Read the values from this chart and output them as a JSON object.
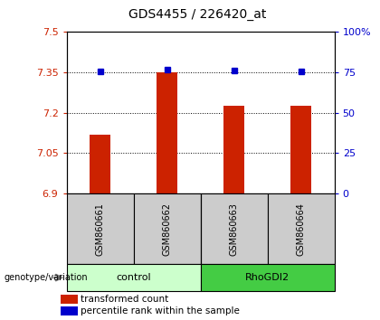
{
  "title": "GDS4455 / 226420_at",
  "samples": [
    "GSM860661",
    "GSM860662",
    "GSM860663",
    "GSM860664"
  ],
  "bar_values": [
    7.12,
    7.35,
    7.225,
    7.225
  ],
  "percentile_values": [
    7.352,
    7.36,
    7.356,
    7.354
  ],
  "ylim_left": [
    6.9,
    7.5
  ],
  "ylim_right": [
    0,
    100
  ],
  "yticks_left": [
    6.9,
    7.05,
    7.2,
    7.35,
    7.5
  ],
  "ytick_labels_left": [
    "6.9",
    "7.05",
    "7.2",
    "7.35",
    "7.5"
  ],
  "yticks_right": [
    0,
    25,
    50,
    75,
    100
  ],
  "ytick_labels_right": [
    "0",
    "25",
    "50",
    "75",
    "100%"
  ],
  "bar_color": "#cc2200",
  "dot_color": "#0000cc",
  "groups": [
    {
      "label": "control",
      "indices": [
        0,
        1
      ],
      "color": "#ccffcc"
    },
    {
      "label": "RhoGDI2",
      "indices": [
        2,
        3
      ],
      "color": "#44cc44"
    }
  ],
  "genotype_label": "genotype/variation",
  "legend_bar_label": "transformed count",
  "legend_dot_label": "percentile rank within the sample",
  "background_color": "#ffffff",
  "plot_bg_color": "#ffffff",
  "sample_box_color": "#cccccc",
  "left_tick_color": "#cc2200",
  "right_tick_color": "#0000cc",
  "grid_yticks": [
    7.05,
    7.2,
    7.35
  ],
  "bar_width": 0.32
}
